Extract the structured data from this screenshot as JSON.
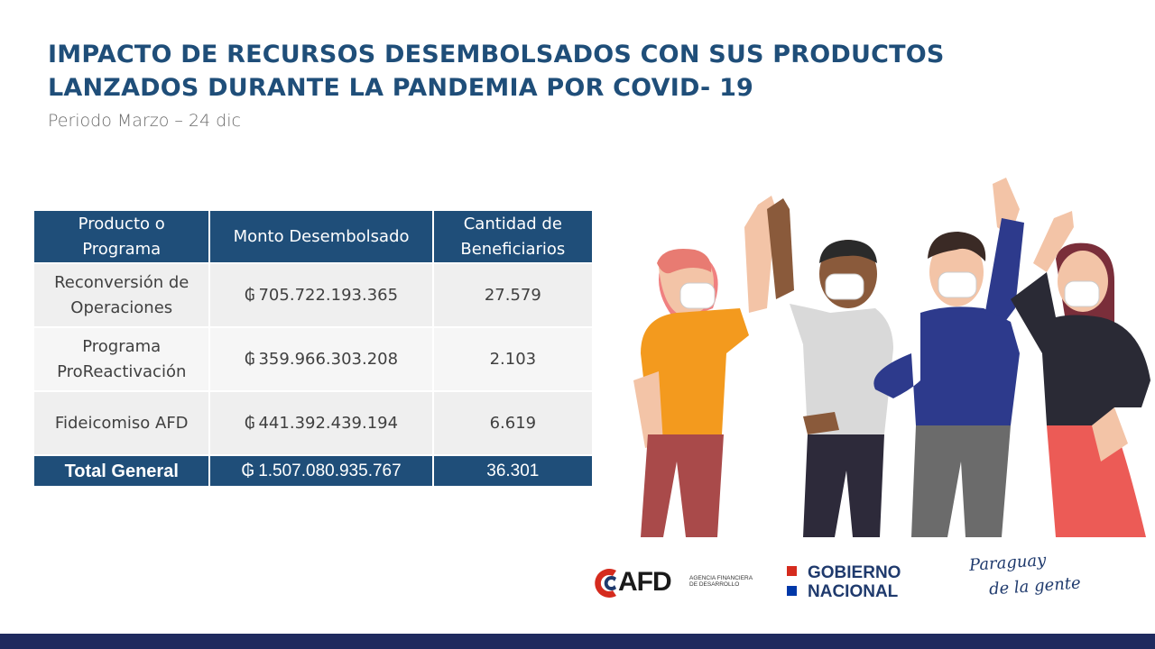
{
  "title": {
    "line1": "IMPACTO DE RECURSOS DESEMBOLSADOS CON SUS PRODUCTOS",
    "line2": "LANZADOS DURANTE LA PANDEMIA POR COVID- 19"
  },
  "subtitle": "Periodo Marzo – 24 dic",
  "table": {
    "headers": [
      "Producto o Programa",
      "Monto Desembolsado",
      "Cantidad de Beneficiarios"
    ],
    "currency_symbol": "₲",
    "rows": [
      {
        "producto": "Reconversión de Operaciones",
        "monto": "705.722.193.365",
        "cantidad": "27.579"
      },
      {
        "producto": "Programa ProReactivación",
        "monto": "359.966.303.208",
        "cantidad": "2.103"
      },
      {
        "producto": "Fideicomiso AFD",
        "monto": "441.392.439.194",
        "cantidad": "6.619"
      }
    ],
    "total": {
      "label": "Total General",
      "monto": "1.507.080.935.767",
      "cantidad": "36.301"
    }
  },
  "logos": {
    "afd": {
      "name": "AFD",
      "subtitle": "AGENCIA FINANCIERA DE DESARROLLO"
    },
    "gobierno": {
      "line1": "GOBIERNO",
      "line2": "NACIONAL"
    },
    "paraguay": {
      "line1": "Paraguay",
      "line2": "de la gente"
    }
  },
  "colors": {
    "primary": "#1f4e79",
    "footer": "#1f2a5e",
    "red": "#d52b1e"
  }
}
